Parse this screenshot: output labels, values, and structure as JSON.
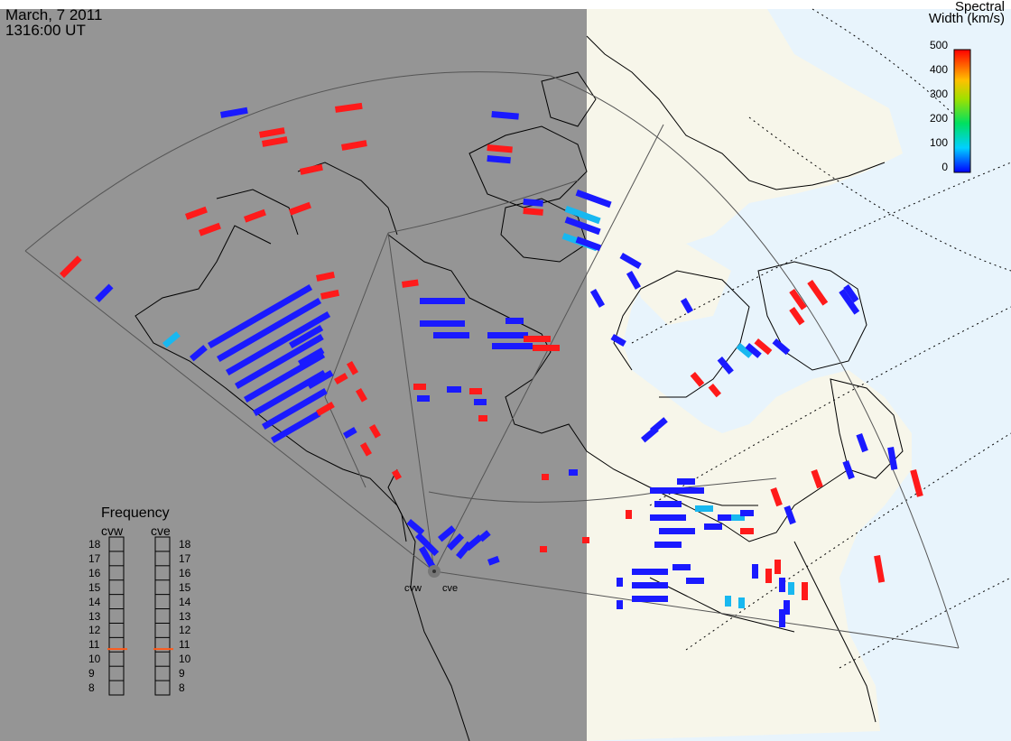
{
  "header": {
    "date": "March, 7 2011",
    "time": "1316:00 UT"
  },
  "legend": {
    "title_line1": "Spectral",
    "title_line2": "Width (km/s)",
    "ticks": [
      "500",
      "400",
      "300",
      "200",
      "100",
      "0"
    ],
    "range": [
      0,
      500
    ]
  },
  "frequency": {
    "title": "Frequency",
    "radars": [
      {
        "label": "cvw",
        "current_mhz": 10.7
      },
      {
        "label": "cve",
        "current_mhz": 10.7
      }
    ],
    "scale": [
      "18",
      "17",
      "16",
      "15",
      "14",
      "13",
      "12",
      "11",
      "10",
      "9",
      "8"
    ]
  },
  "radar_sites": [
    {
      "label": "cvw"
    },
    {
      "label": "cve"
    }
  ],
  "colors": {
    "night_side": "#959595",
    "day_land": "#f7f6ea",
    "day_ocean": "#e8f4fc",
    "low_width": "#1a1aff",
    "high_width": "#ff1a1a",
    "mid_width": "#18b8f0"
  }
}
